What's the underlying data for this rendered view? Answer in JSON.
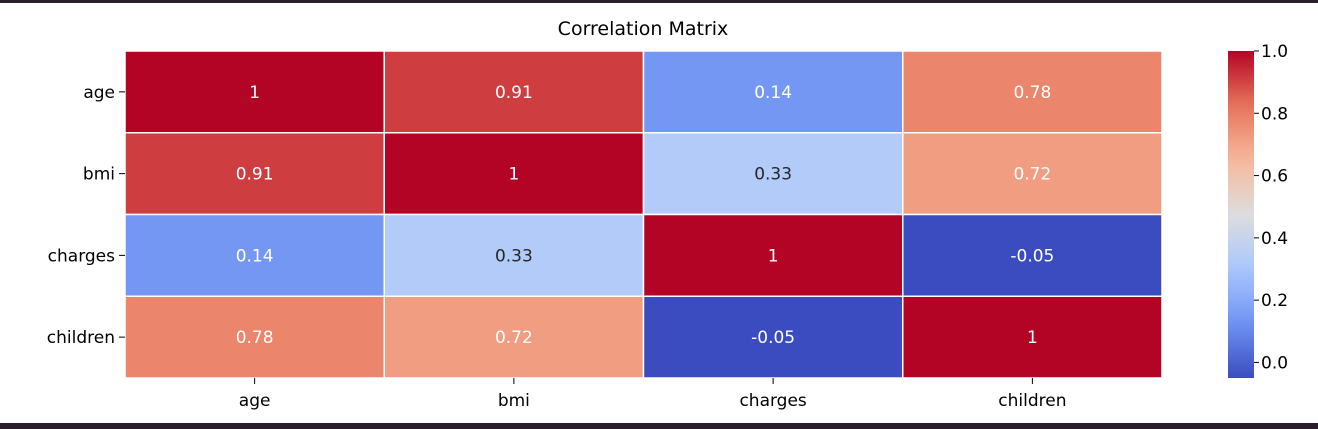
{
  "chart_data": {
    "type": "heatmap",
    "title": "Correlation Matrix",
    "xlabel": "",
    "ylabel": "",
    "x_categories": [
      "age",
      "bmi",
      "charges",
      "children"
    ],
    "y_categories": [
      "age",
      "bmi",
      "charges",
      "children"
    ],
    "values": [
      [
        1,
        0.91,
        0.14,
        0.78
      ],
      [
        0.91,
        1,
        0.33,
        0.72
      ],
      [
        0.14,
        0.33,
        1,
        -0.05
      ],
      [
        0.78,
        0.72,
        -0.05,
        1
      ]
    ],
    "annotations": [
      [
        "1",
        "0.91",
        "0.14",
        "0.78"
      ],
      [
        "0.91",
        "1",
        "0.33",
        "0.72"
      ],
      [
        "0.14",
        "0.33",
        "1",
        "-0.05"
      ],
      [
        "0.78",
        "0.72",
        "-0.05",
        "1"
      ]
    ],
    "colormap": "coolwarm",
    "colormap_stops": [
      "#3b4cc0",
      "#6f92f3",
      "#aac7fd",
      "#dddddd",
      "#f7b89c",
      "#e7745b",
      "#b40426"
    ],
    "vmin": -0.05,
    "vmax": 1.0,
    "colorbar_ticks": [
      "0.0",
      "0.2",
      "0.4",
      "0.6",
      "0.8",
      "1.0"
    ],
    "colorbar_tick_values": [
      0.0,
      0.2,
      0.4,
      0.6,
      0.8,
      1.0
    ],
    "grid": false,
    "cell_border_color": "#ffffff"
  }
}
